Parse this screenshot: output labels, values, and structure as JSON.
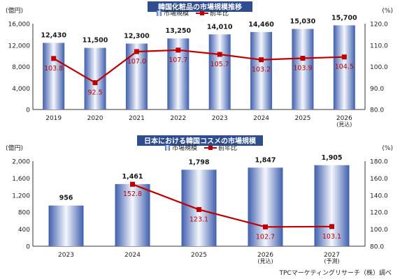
{
  "chart_data": [
    {
      "type": "bar+line",
      "title": "韓国化粧品の市場規模推移",
      "left_unit": "(億円)",
      "right_unit": "(%)",
      "categories": [
        "2019",
        "2020",
        "2021",
        "2022",
        "2023",
        "2024",
        "2025",
        "2026"
      ],
      "category_sublabels": [
        "",
        "",
        "",
        "",
        "",
        "",
        "",
        "(見込)"
      ],
      "left_ticks": [
        "0",
        "4,000",
        "8,000",
        "12,000",
        "16,000"
      ],
      "right_ticks": [
        "80.0",
        "90.0",
        "100.0",
        "110.0",
        "120.0"
      ],
      "ylim_left": [
        0,
        16000
      ],
      "ylim_right": [
        80,
        120
      ],
      "legend": {
        "bar": "市場規模",
        "line": "前年比"
      },
      "series": [
        {
          "name": "市場規模",
          "axis": "left",
          "kind": "bar",
          "values": [
            12430,
            11500,
            12300,
            13250,
            14010,
            14460,
            15030,
            15700
          ],
          "labels": [
            "12,430",
            "11,500",
            "12,300",
            "13,250",
            "14,010",
            "14,460",
            "15,030",
            "15,700"
          ]
        },
        {
          "name": "前年比",
          "axis": "right",
          "kind": "line",
          "values": [
            103.8,
            92.5,
            107.0,
            107.7,
            105.7,
            103.2,
            103.9,
            104.5
          ],
          "labels": [
            "103.8",
            "92.5",
            "107.0",
            "107.7",
            "105.7",
            "103.2",
            "103.9",
            "104.5"
          ]
        }
      ],
      "colors": {
        "bar_dark": "#3f5fae",
        "bar_light": "#f4f7fd",
        "line": "#c00000",
        "title_bg": "#2e4d8f"
      }
    },
    {
      "type": "bar+line",
      "title": "日本における韓国コスメの市場規模",
      "left_unit": "(億円)",
      "right_unit": "(%)",
      "categories": [
        "2023",
        "2024",
        "2025",
        "2026",
        "2027"
      ],
      "category_sublabels": [
        "",
        "",
        "",
        "(見込)",
        "(予測)"
      ],
      "left_ticks": [
        "0",
        "400",
        "800",
        "1,200",
        "1,600",
        "2,000"
      ],
      "right_ticks": [
        "80.0",
        "100.0",
        "120.0",
        "140.0",
        "160.0",
        "180.0"
      ],
      "ylim_left": [
        0,
        2000
      ],
      "ylim_right": [
        80,
        180
      ],
      "legend": {
        "bar": "市場規模",
        "line": "前年比"
      },
      "series": [
        {
          "name": "市場規模",
          "axis": "left",
          "kind": "bar",
          "values": [
            956,
            1461,
            1798,
            1847,
            1905
          ],
          "labels": [
            "956",
            "1,461",
            "1,798",
            "1,847",
            "1,905"
          ]
        },
        {
          "name": "前年比",
          "axis": "right",
          "kind": "line",
          "values": [
            null,
            152.8,
            123.1,
            102.7,
            103.1
          ],
          "labels": [
            "",
            "152.8",
            "123.1",
            "102.7",
            "103.1"
          ]
        }
      ],
      "colors": {
        "bar_dark": "#3f5fae",
        "bar_light": "#f4f7fd",
        "line": "#c00000",
        "title_bg": "#2e4d8f"
      }
    }
  ],
  "source_note": "TPCマーケティングリサーチ（株）調べ"
}
